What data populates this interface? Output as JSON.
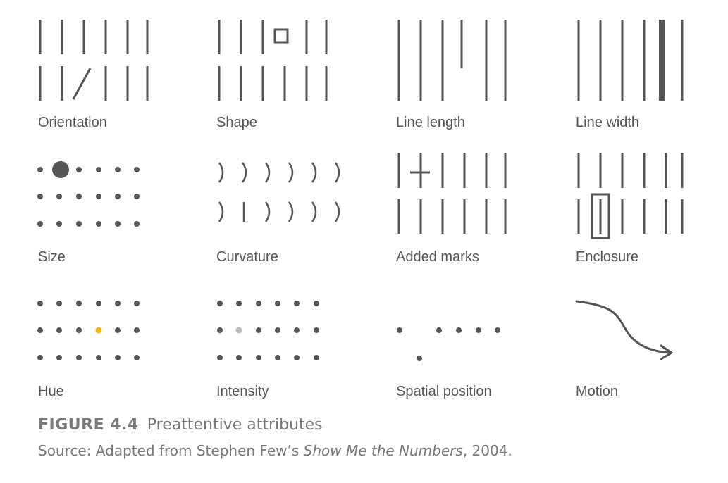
{
  "figure": {
    "number": "FIGURE 4.4",
    "title": "Preattentive attributes"
  },
  "source": {
    "prefix": "Source: Adapted from Stephen Few’s ",
    "book": "Show Me the Numbers",
    "suffix": ", 2004."
  },
  "panels": [
    {
      "id": "orientation",
      "label": "Orientation"
    },
    {
      "id": "shape",
      "label": "Shape"
    },
    {
      "id": "line-length",
      "label": "Line length"
    },
    {
      "id": "line-width",
      "label": "Line width"
    },
    {
      "id": "size",
      "label": "Size"
    },
    {
      "id": "curvature",
      "label": "Curvature"
    },
    {
      "id": "added-marks",
      "label": "Added marks"
    },
    {
      "id": "enclosure",
      "label": "Enclosure"
    },
    {
      "id": "hue",
      "label": "Hue"
    },
    {
      "id": "intensity",
      "label": "Intensity"
    },
    {
      "id": "spatial-position",
      "label": "Spatial position"
    },
    {
      "id": "motion",
      "label": "Motion"
    }
  ],
  "colors": {
    "mark": "#555555",
    "hue_highlight": "#f2b705",
    "intensity_highlight": "#bbbbbb"
  }
}
